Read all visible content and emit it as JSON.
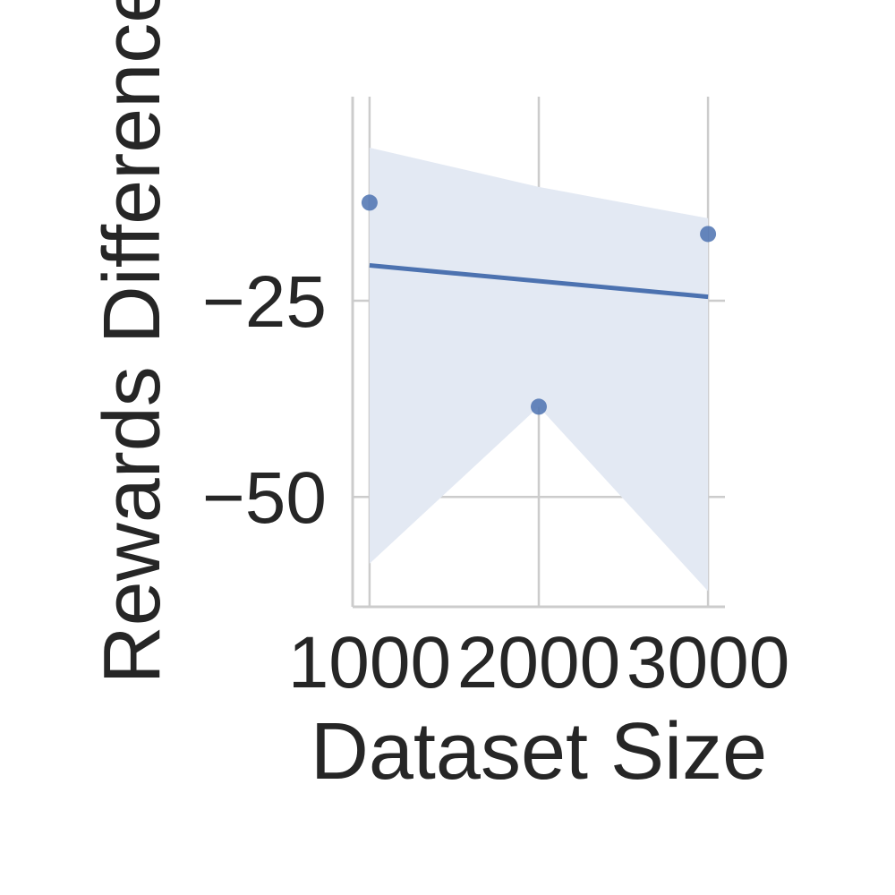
{
  "chart_data": {
    "type": "scatter",
    "xlabel": "Dataset Size",
    "ylabel": "Rewards Difference",
    "x": [
      1000,
      2000,
      3000
    ],
    "y": [
      -12.5,
      -38.5,
      -16.5
    ],
    "xticks": [
      1000,
      2000,
      3000
    ],
    "xtick_labels": [
      "1000",
      "2000",
      "3000"
    ],
    "yticks": [
      -25,
      -50
    ],
    "ytick_labels": [
      "−25",
      "−50"
    ],
    "xlim": [
      900,
      3100
    ],
    "ylim": [
      -64,
      1
    ],
    "grid": true,
    "regression": {
      "y_at_xmin": -20.5,
      "y_at_xmax": -24.5,
      "ci_band": {
        "upper": [
          -5.5,
          -10.5,
          -14.5
        ],
        "lower": [
          -58.5,
          -38.5,
          -62
        ]
      }
    },
    "colors": {
      "points": "#4c72b0",
      "line": "#4c72b0",
      "band": "#e3e9f3",
      "grid": "#cccccc",
      "text": "#262626"
    }
  }
}
